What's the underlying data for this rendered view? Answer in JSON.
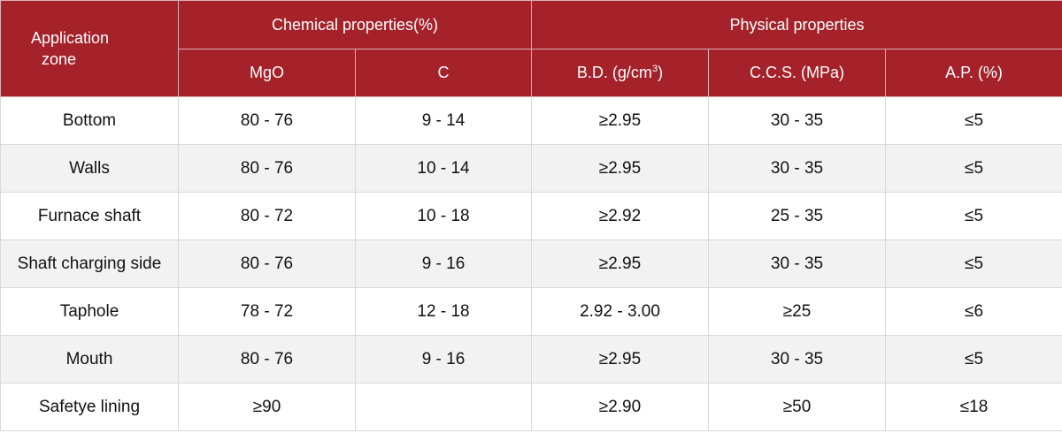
{
  "header": {
    "zone_line1": "Application",
    "zone_line2": "zone",
    "chemical_group": "Chemical properties(%)",
    "physical_group": "Physical properties",
    "columns": {
      "mgo": "MgO",
      "c": "C",
      "bd": "B.D. (g/cm",
      "bd_sup": "3",
      "bd_close": ")",
      "ccs": "C.C.S. (MPa)",
      "ap": "A.P. (%)"
    }
  },
  "rows": [
    {
      "zone": "Bottom",
      "mgo": "80 - 76",
      "c": "9 - 14",
      "bd": "≥2.95",
      "ccs": "30 - 35",
      "ap": "≤5"
    },
    {
      "zone": "Walls",
      "mgo": "80 - 76",
      "c": "10 - 14",
      "bd": "≥2.95",
      "ccs": "30 - 35",
      "ap": "≤5"
    },
    {
      "zone": "Furnace shaft",
      "mgo": "80 - 72",
      "c": "10 - 18",
      "bd": "≥2.92",
      "ccs": "25 - 35",
      "ap": "≤5"
    },
    {
      "zone": "Shaft charging side",
      "mgo": "80 - 76",
      "c": "9 - 16",
      "bd": "≥2.95",
      "ccs": "30 - 35",
      "ap": "≤5"
    },
    {
      "zone": "Taphole",
      "mgo": "78 - 72",
      "c": "12 - 18",
      "bd": "2.92 - 3.00",
      "ccs": "≥25",
      "ap": "≤6"
    },
    {
      "zone": "Mouth",
      "mgo": "80 - 76",
      "c": "9 - 16",
      "bd": "≥2.95",
      "ccs": "30 - 35",
      "ap": "≤5"
    },
    {
      "zone": "Safetye lining",
      "mgo": "≥90",
      "c": "",
      "bd": "≥2.90",
      "ccs": "≥50",
      "ap": "≤18"
    }
  ],
  "colors": {
    "header_bg": "#a5222a",
    "header_text": "#ffffff",
    "alt_row_bg": "#f2f2f2",
    "border": "#d9d9d9"
  }
}
